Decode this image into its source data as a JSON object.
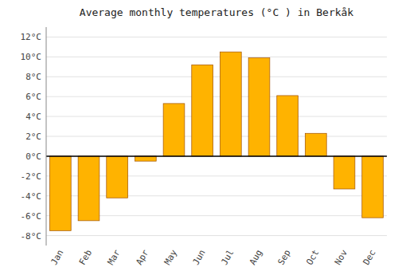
{
  "chart_data": {
    "type": "bar",
    "title": "Average monthly temperatures (°C ) in Berkåk",
    "categories": [
      "Jan",
      "Feb",
      "Mar",
      "Apr",
      "May",
      "Jun",
      "Jul",
      "Aug",
      "Sep",
      "Oct",
      "Nov",
      "Dec"
    ],
    "values": [
      -7.5,
      -6.5,
      -4.2,
      -0.5,
      5.3,
      9.2,
      10.5,
      9.9,
      6.1,
      2.3,
      -3.3,
      -6.2
    ],
    "color": "#FFB300",
    "ylim": [
      -9,
      13
    ],
    "yticks": [
      {
        "value": -8,
        "label": "-8°C"
      },
      {
        "value": -6,
        "label": "-6°C"
      },
      {
        "value": -4,
        "label": "-4°C"
      },
      {
        "value": -2,
        "label": "-2°C"
      },
      {
        "value": 0,
        "label": "0°C"
      },
      {
        "value": 2,
        "label": "2°C"
      },
      {
        "value": 4,
        "label": "4°C"
      },
      {
        "value": 6,
        "label": "6°C"
      },
      {
        "value": 8,
        "label": "8°C"
      },
      {
        "value": 10,
        "label": "10°C"
      },
      {
        "value": 12,
        "label": "12°C"
      }
    ],
    "grid": true
  }
}
